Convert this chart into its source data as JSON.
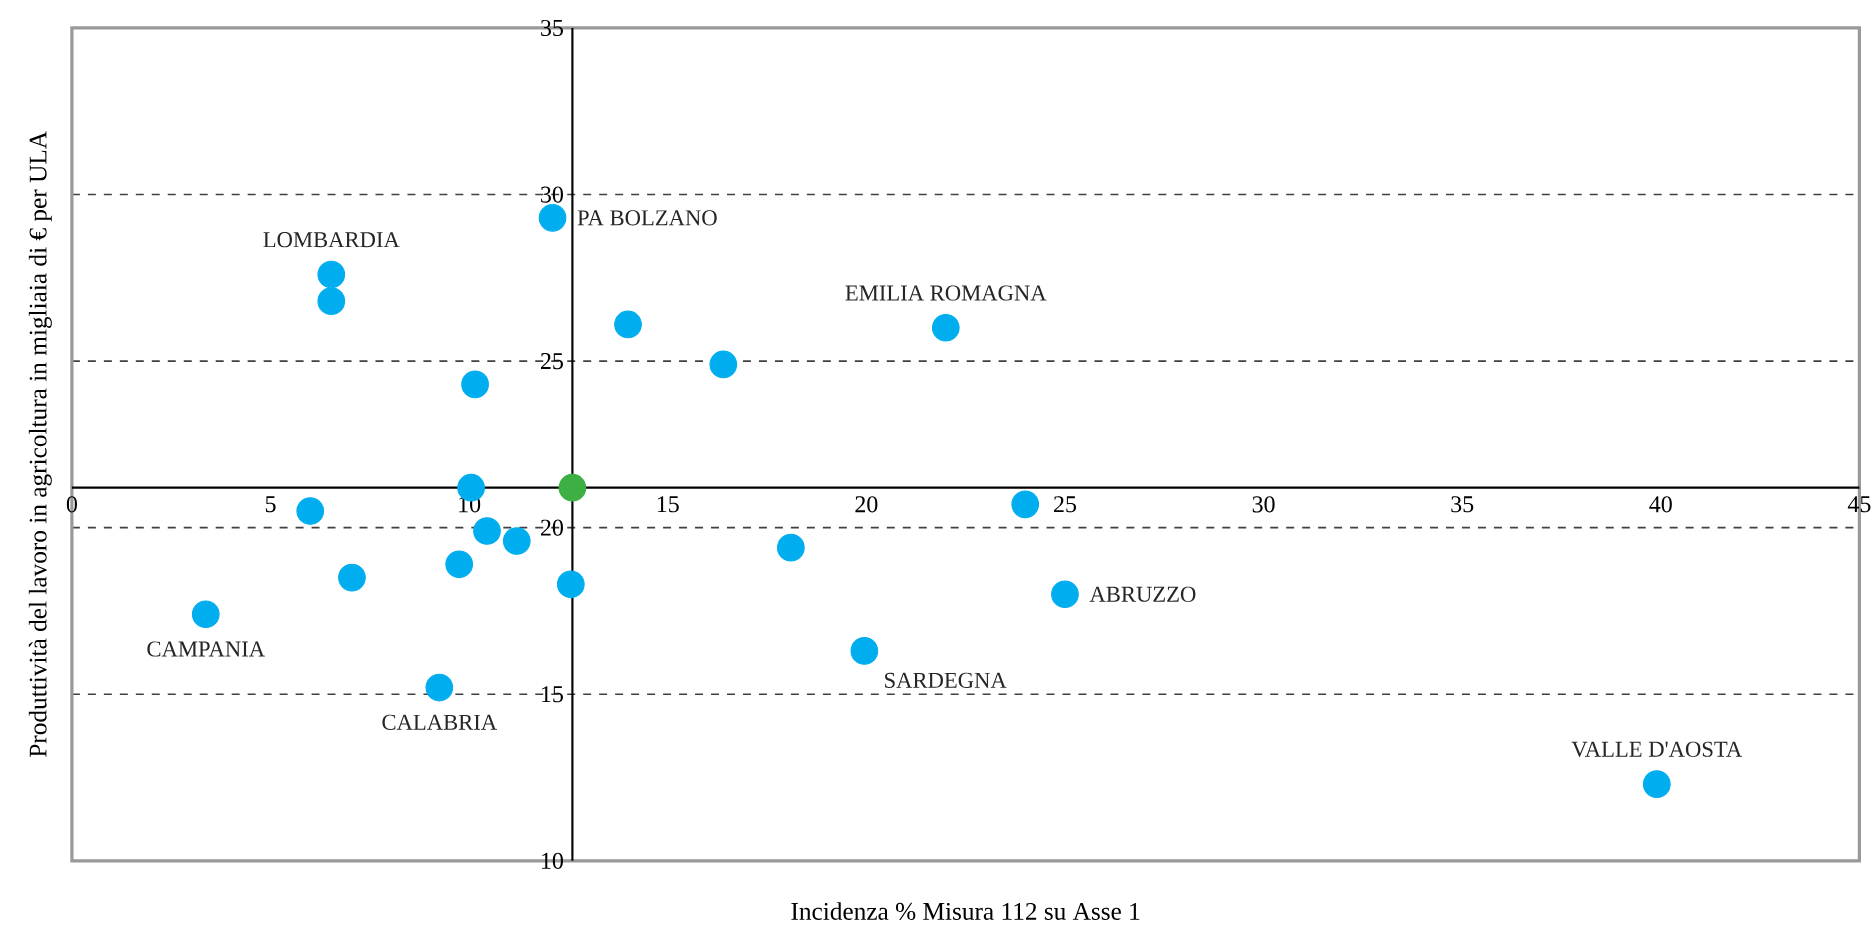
{
  "chart_data": {
    "type": "scatter",
    "xlabel": "Incidenza % Misura 112 su Asse 1",
    "ylabel": "Produttività del lavoro in agricoltura in migliaia di € per ULA",
    "xlim": [
      0,
      45
    ],
    "ylim": [
      10,
      35
    ],
    "xticks": [
      0,
      5,
      10,
      15,
      20,
      25,
      30,
      35,
      40,
      45
    ],
    "yticks": [
      10,
      15,
      20,
      25,
      30,
      35
    ],
    "grid": "y",
    "marker": "circle",
    "series": [
      {
        "color": "#00aeef",
        "x": [
          6.53,
          6.53,
          12.1,
          14.0,
          16.4,
          22.0,
          10.15,
          10.05,
          6.0,
          10.45,
          11.2,
          9.75,
          7.05,
          3.37,
          9.25,
          12.56,
          18.1,
          19.95,
          24.0,
          25.0,
          39.9
        ],
        "values": [
          27.6,
          26.8,
          29.3,
          26.1,
          24.9,
          26.0,
          24.3,
          21.2,
          20.5,
          19.9,
          19.6,
          18.9,
          18.5,
          17.4,
          15.2,
          18.3,
          19.4,
          16.3,
          20.7,
          18.0,
          12.3
        ]
      },
      {
        "color": "#3cb043",
        "x": [
          12.6
        ],
        "values": [
          21.2
        ]
      }
    ],
    "annotations": [
      {
        "text": "LOMBARDIA",
        "x": 6.53,
        "y": 27.6
      },
      {
        "text": "PA BOLZANO",
        "x": 12.1,
        "y": 29.3
      },
      {
        "text": "EMILIA ROMAGNA",
        "x": 22.0,
        "y": 26.0
      },
      {
        "text": "CAMPANIA",
        "x": 3.37,
        "y": 17.4
      },
      {
        "text": "CALABRIA",
        "x": 9.25,
        "y": 15.2
      },
      {
        "text": "SARDEGNA",
        "x": 19.95,
        "y": 16.3
      },
      {
        "text": "ABRUZZO",
        "x": 25.0,
        "y": 18.0
      },
      {
        "text": "VALLE D'AOSTA",
        "x": 39.9,
        "y": 12.3
      }
    ]
  }
}
